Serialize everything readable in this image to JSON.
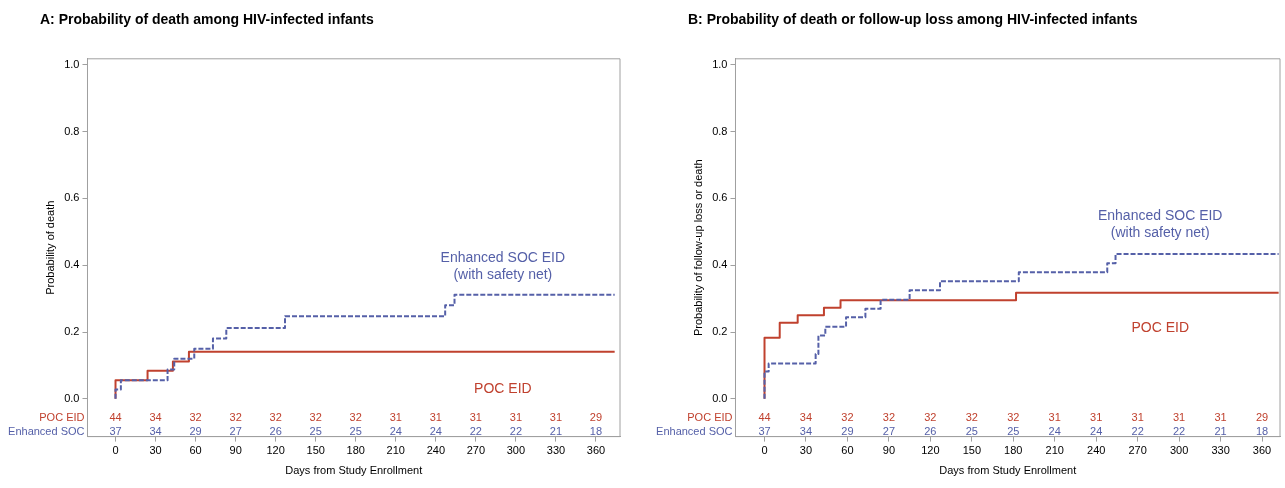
{
  "chart_data": [
    {
      "type": "step",
      "title": "A: Probability of death among HIV-infected infants",
      "xlabel": "Days from Study Enrollment",
      "ylabel": "Probability of death",
      "marker": "none",
      "xlim": [
        -21,
        378
      ],
      "xticks": [
        0,
        30,
        60,
        90,
        120,
        150,
        180,
        210,
        240,
        270,
        300,
        330,
        360
      ],
      "ylim": [
        -0.113,
        1.018
      ],
      "yticks": [
        {
          "value": 0,
          "label": "0.0"
        },
        {
          "value": 0.2,
          "label": "0.2"
        },
        {
          "value": 0.4,
          "label": "0.4"
        },
        {
          "value": 0.6,
          "label": "0.6"
        },
        {
          "value": 0.8,
          "label": "0.8"
        },
        {
          "value": 1,
          "label": "1.0"
        }
      ],
      "series": [
        {
          "name": "POC EID",
          "color": "#c0412e",
          "line_style": "solid",
          "x": [
            0,
            24,
            43,
            55,
            348,
            374
          ],
          "values": [
            0,
            0.056,
            0.084,
            0.112,
            0.141,
            0.141
          ]
        },
        {
          "name": "Enhanced SOC EID (with safety net)",
          "color": "#5560a8",
          "line_style": "dashed",
          "x": [
            0,
            4,
            39,
            44,
            59,
            73,
            83,
            127,
            247,
            254,
            325,
            374
          ],
          "values": [
            0,
            0.028,
            0.056,
            0.088,
            0.12,
            0.15,
            0.181,
            0.212,
            0.247,
            0.28,
            0.312,
            0.312
          ]
        }
      ],
      "annotations": [
        "POC EID",
        "44",
        "34",
        "32",
        "32",
        "32",
        "32",
        "32",
        "31",
        "31",
        "31",
        "31",
        "31",
        "29",
        "Enhanced SOC",
        "37",
        "34",
        "29",
        "27",
        "26",
        "25",
        "25",
        "24",
        "24",
        "22",
        "22",
        "21",
        "18"
      ]
    },
    {
      "type": "step",
      "title": "B: Probability of death or follow-up loss among HIV-infected infants",
      "xlabel": "Days from Study Enrollment",
      "ylabel": "Probability of follow-up loss or death",
      "marker": "none",
      "xlim": [
        -21,
        373
      ],
      "xticks": [
        0,
        30,
        60,
        90,
        120,
        150,
        180,
        210,
        240,
        270,
        300,
        330,
        360
      ],
      "ylim": [
        -0.113,
        1.018
      ],
      "yticks": [
        {
          "value": 0,
          "label": "0.0"
        },
        {
          "value": 0.2,
          "label": "0.2"
        },
        {
          "value": 0.4,
          "label": "0.4"
        },
        {
          "value": 0.6,
          "label": "0.6"
        },
        {
          "value": 0.8,
          "label": "0.8"
        },
        {
          "value": 1,
          "label": "1.0"
        }
      ],
      "series": [
        {
          "name": "POC EID",
          "color": "#c0412e",
          "line_style": "solid",
          "x": [
            0,
            0,
            11,
            24,
            43,
            55,
            182,
            348,
            372
          ],
          "values": [
            0,
            0.159,
            0.183,
            0.228,
            0.25,
            0.273,
            0.295,
            0.318,
            0.318
          ]
        },
        {
          "name": "Enhanced SOC EID (with safety net)",
          "color": "#5560a8",
          "line_style": "dashed",
          "x": [
            0,
            0,
            3,
            37,
            39,
            44,
            59,
            73,
            84,
            105,
            127,
            184,
            248,
            254,
            325,
            372
          ],
          "values": [
            0,
            0.054,
            0.082,
            0.106,
            0.134,
            0.19,
            0.216,
            0.244,
            0.27,
            0.297,
            0.325,
            0.352,
            0.379,
            0.406,
            0.434,
            0.434
          ]
        }
      ],
      "annotations": [
        "POC EID",
        "44",
        "34",
        "32",
        "32",
        "32",
        "32",
        "32",
        "31",
        "31",
        "31",
        "31",
        "31",
        "29",
        "Enhanced SOC",
        "37",
        "34",
        "29",
        "27",
        "26",
        "25",
        "25",
        "24",
        "24",
        "22",
        "22",
        "21",
        "18"
      ]
    }
  ]
}
